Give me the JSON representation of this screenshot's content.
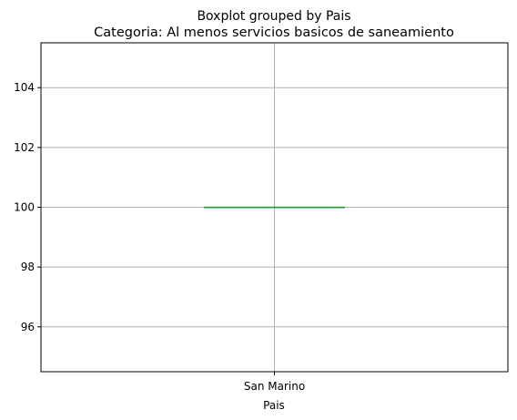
{
  "chart_data": {
    "type": "boxplot",
    "suptitle": "Boxplot grouped by Pais",
    "title": "Categoria: Al menos servicios basicos de saneamiento",
    "xlabel": "Pais",
    "ylabel": "",
    "categories": [
      "San Marino"
    ],
    "boxes": [
      {
        "category": "San Marino",
        "min": 100,
        "q1": 100,
        "median": 100,
        "q3": 100,
        "max": 100
      }
    ],
    "ylim": [
      94.5,
      105.5
    ],
    "yticks": [
      96,
      98,
      100,
      102,
      104
    ],
    "ytick_labels": [
      "96",
      "98",
      "100",
      "102",
      "104"
    ],
    "grid": true,
    "colors": {
      "box": "#1f77b4",
      "median": "#2ca02c",
      "grid": "#b0b0b0",
      "axes": "#000000"
    }
  }
}
